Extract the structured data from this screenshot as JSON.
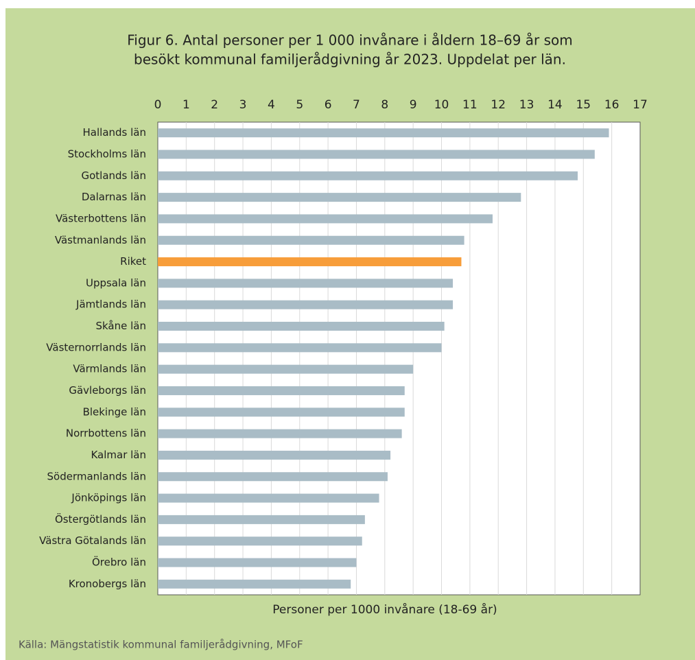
{
  "chart_data": {
    "type": "barh",
    "title": [
      "Figur 6. Antal personer per 1 000 invånare i åldern 18–69 år som",
      "besökt kommunal familjerådgivning år 2023. Uppdelat per län."
    ],
    "xlabel": "Personer per 1000 invånare (18-69 år)",
    "source": "Källa: Mängstatistik kommunal familjerådgivning, MFoF",
    "categories": [
      "Hallands län",
      "Stockholms län",
      "Gotlands län",
      "Dalarnas län",
      "Västerbottens län",
      "Västmanlands län",
      "Riket",
      "Uppsala län",
      "Jämtlands län",
      "Skåne län",
      "Västernorrlands län",
      "Värmlands län",
      "Gävleborgs län",
      "Blekinge län",
      "Norrbottens län",
      "Kalmar län",
      "Södermanlands län",
      "Jönköpings län",
      "Östergötlands län",
      "Västra Götalands län",
      "Örebro län",
      "Kronobergs län"
    ],
    "values": [
      15.9,
      15.4,
      14.8,
      12.8,
      11.8,
      10.8,
      10.7,
      10.4,
      10.4,
      10.1,
      10.0,
      9.0,
      8.7,
      8.7,
      8.6,
      8.2,
      8.1,
      7.8,
      7.3,
      7.2,
      7.0,
      6.8
    ],
    "colors": [
      "#a9bcc6",
      "#a9bcc6",
      "#a9bcc6",
      "#a9bcc6",
      "#a9bcc6",
      "#a9bcc6",
      "#f79d3a",
      "#a9bcc6",
      "#a9bcc6",
      "#a9bcc6",
      "#a9bcc6",
      "#a9bcc6",
      "#a9bcc6",
      "#a9bcc6",
      "#a9bcc6",
      "#a9bcc6",
      "#a9bcc6",
      "#a9bcc6",
      "#a9bcc6",
      "#a9bcc6",
      "#a9bcc6",
      "#a9bcc6"
    ],
    "xlim": [
      0,
      17
    ],
    "xticks": [
      0,
      1,
      2,
      3,
      4,
      5,
      6,
      7,
      8,
      9,
      10,
      11,
      12,
      13,
      14,
      15,
      16,
      17
    ],
    "grid": true
  }
}
